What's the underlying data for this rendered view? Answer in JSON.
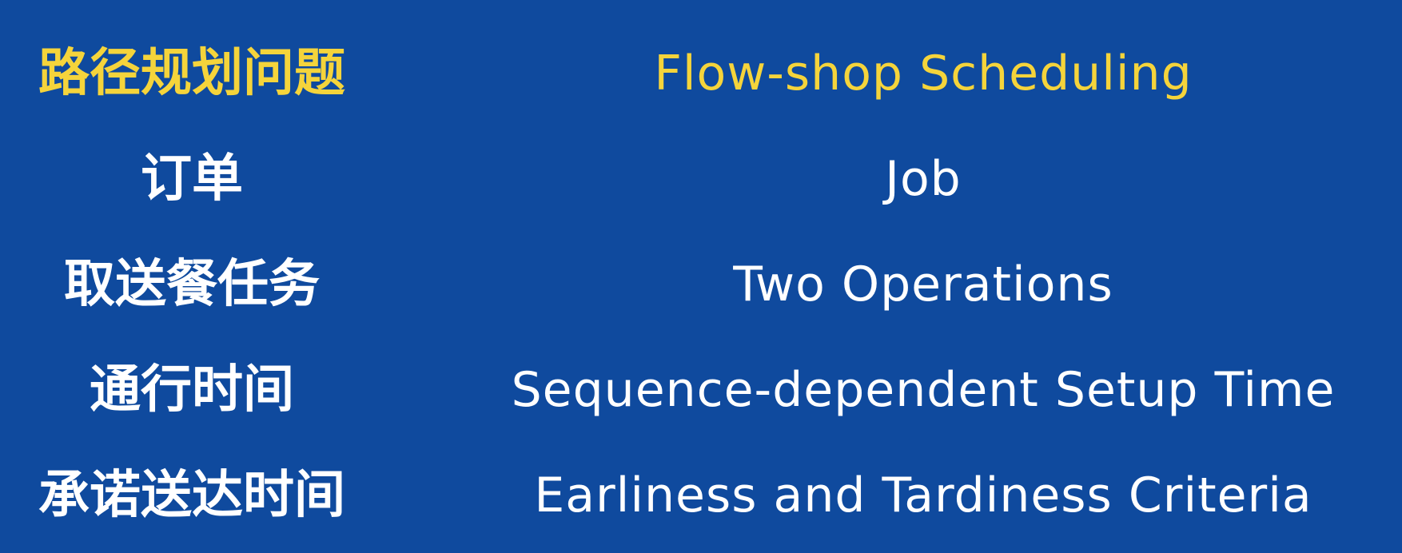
{
  "colors": {
    "background": "#0f4a9e",
    "header_text": "#f5d43b",
    "body_text": "#ffffff"
  },
  "rows": [
    {
      "left": "路径规划问题",
      "right": "Flow-shop Scheduling"
    },
    {
      "left": "订单",
      "right": "Job"
    },
    {
      "left": "取送餐任务",
      "right": "Two Operations"
    },
    {
      "left": "通行时间",
      "right": "Sequence-dependent Setup Time"
    },
    {
      "left": "承诺送达时间",
      "right": "Earliness and Tardiness Criteria"
    }
  ]
}
